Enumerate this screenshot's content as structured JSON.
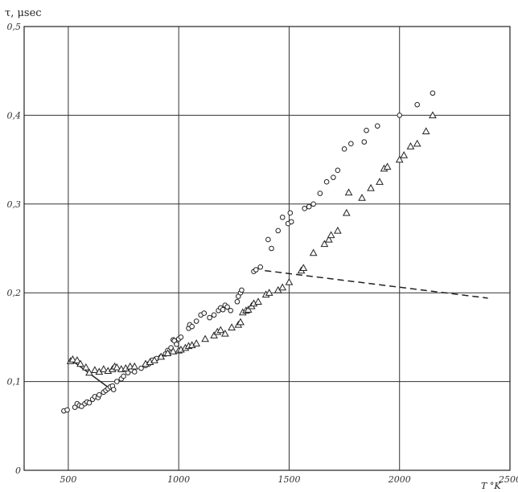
{
  "chart_data": {
    "type": "scatter",
    "title": "",
    "ylabel": "τ, μsec",
    "xlabel": "T °K",
    "xlim": [
      300,
      2500
    ],
    "ylim": [
      0,
      0.5
    ],
    "x_ticks": [
      "500",
      "1000",
      "1500",
      "2000",
      "2500"
    ],
    "x_tick_values": [
      500,
      1000,
      1500,
      2000,
      2500
    ],
    "y_ticks": [
      "0",
      "0,1",
      "0,2",
      "0,3",
      "0,4",
      "0,5"
    ],
    "y_tick_values": [
      0,
      0.1,
      0.2,
      0.3,
      0.4,
      0.5
    ],
    "grid": true,
    "series": [
      {
        "marker": "circle",
        "points": [
          [
            480,
            0.067
          ],
          [
            495,
            0.068
          ],
          [
            530,
            0.071
          ],
          [
            540,
            0.075
          ],
          [
            550,
            0.073
          ],
          [
            560,
            0.072
          ],
          [
            575,
            0.075
          ],
          [
            585,
            0.077
          ],
          [
            595,
            0.076
          ],
          [
            610,
            0.08
          ],
          [
            620,
            0.083
          ],
          [
            635,
            0.082
          ],
          [
            640,
            0.085
          ],
          [
            660,
            0.088
          ],
          [
            670,
            0.09
          ],
          [
            680,
            0.092
          ],
          [
            690,
            0.094
          ],
          [
            700,
            0.095
          ],
          [
            705,
            0.091
          ],
          [
            720,
            0.1
          ],
          [
            740,
            0.103
          ],
          [
            750,
            0.106
          ],
          [
            770,
            0.11
          ],
          [
            785,
            0.113
          ],
          [
            800,
            0.111
          ],
          [
            830,
            0.115
          ],
          [
            850,
            0.118
          ],
          [
            865,
            0.12
          ],
          [
            880,
            0.124
          ],
          [
            900,
            0.126
          ],
          [
            920,
            0.128
          ],
          [
            940,
            0.131
          ],
          [
            950,
            0.135
          ],
          [
            965,
            0.138
          ],
          [
            975,
            0.147
          ],
          [
            980,
            0.146
          ],
          [
            990,
            0.142
          ],
          [
            1000,
            0.148
          ],
          [
            1010,
            0.15
          ],
          [
            1045,
            0.16
          ],
          [
            1050,
            0.164
          ],
          [
            1060,
            0.162
          ],
          [
            1080,
            0.168
          ],
          [
            1100,
            0.175
          ],
          [
            1115,
            0.177
          ],
          [
            1140,
            0.172
          ],
          [
            1160,
            0.175
          ],
          [
            1180,
            0.18
          ],
          [
            1190,
            0.183
          ],
          [
            1200,
            0.181
          ],
          [
            1210,
            0.186
          ],
          [
            1220,
            0.184
          ],
          [
            1235,
            0.18
          ],
          [
            1265,
            0.19
          ],
          [
            1270,
            0.196
          ],
          [
            1280,
            0.2
          ],
          [
            1285,
            0.203
          ],
          [
            1340,
            0.224
          ],
          [
            1350,
            0.226
          ],
          [
            1370,
            0.229
          ],
          [
            1405,
            0.26
          ],
          [
            1420,
            0.25
          ],
          [
            1450,
            0.27
          ],
          [
            1470,
            0.285
          ],
          [
            1495,
            0.278
          ],
          [
            1505,
            0.29
          ],
          [
            1510,
            0.28
          ],
          [
            1570,
            0.295
          ],
          [
            1590,
            0.297
          ],
          [
            1610,
            0.3
          ],
          [
            1640,
            0.312
          ],
          [
            1670,
            0.325
          ],
          [
            1700,
            0.33
          ],
          [
            1720,
            0.338
          ],
          [
            1750,
            0.362
          ],
          [
            1780,
            0.368
          ],
          [
            1840,
            0.37
          ],
          [
            1850,
            0.383
          ],
          [
            1900,
            0.388
          ],
          [
            2000,
            0.4
          ],
          [
            2080,
            0.412
          ],
          [
            2150,
            0.425
          ]
        ]
      },
      {
        "marker": "triangle",
        "points": [
          [
            510,
            0.123
          ],
          [
            520,
            0.125
          ],
          [
            540,
            0.124
          ],
          [
            555,
            0.12
          ],
          [
            580,
            0.116
          ],
          [
            595,
            0.11
          ],
          [
            620,
            0.113
          ],
          [
            640,
            0.111
          ],
          [
            660,
            0.114
          ],
          [
            680,
            0.112
          ],
          [
            700,
            0.114
          ],
          [
            710,
            0.117
          ],
          [
            720,
            0.116
          ],
          [
            740,
            0.114
          ],
          [
            760,
            0.115
          ],
          [
            780,
            0.117
          ],
          [
            800,
            0.117
          ],
          [
            850,
            0.12
          ],
          [
            870,
            0.122
          ],
          [
            890,
            0.124
          ],
          [
            920,
            0.128
          ],
          [
            950,
            0.132
          ],
          [
            975,
            0.134
          ],
          [
            1000,
            0.135
          ],
          [
            1010,
            0.136
          ],
          [
            1030,
            0.138
          ],
          [
            1045,
            0.14
          ],
          [
            1060,
            0.141
          ],
          [
            1080,
            0.143
          ],
          [
            1120,
            0.148
          ],
          [
            1160,
            0.152
          ],
          [
            1175,
            0.156
          ],
          [
            1190,
            0.158
          ],
          [
            1210,
            0.154
          ],
          [
            1240,
            0.161
          ],
          [
            1270,
            0.164
          ],
          [
            1280,
            0.167
          ],
          [
            1290,
            0.178
          ],
          [
            1305,
            0.18
          ],
          [
            1315,
            0.181
          ],
          [
            1330,
            0.185
          ],
          [
            1340,
            0.188
          ],
          [
            1360,
            0.19
          ],
          [
            1395,
            0.198
          ],
          [
            1410,
            0.2
          ],
          [
            1450,
            0.203
          ],
          [
            1470,
            0.206
          ],
          [
            1500,
            0.212
          ],
          [
            1555,
            0.225
          ],
          [
            1565,
            0.228
          ],
          [
            1610,
            0.245
          ],
          [
            1660,
            0.255
          ],
          [
            1680,
            0.26
          ],
          [
            1690,
            0.265
          ],
          [
            1720,
            0.27
          ],
          [
            1760,
            0.29
          ],
          [
            1770,
            0.313
          ],
          [
            1830,
            0.307
          ],
          [
            1870,
            0.318
          ],
          [
            1910,
            0.325
          ],
          [
            1930,
            0.34
          ],
          [
            1945,
            0.342
          ],
          [
            2000,
            0.35
          ],
          [
            2020,
            0.355
          ],
          [
            2050,
            0.365
          ],
          [
            2080,
            0.368
          ],
          [
            2120,
            0.382
          ],
          [
            2150,
            0.4
          ]
        ]
      }
    ],
    "lines": [
      {
        "style": "solid",
        "points": [
          [
            520,
            0.123
          ],
          [
            700,
            0.09
          ]
        ]
      },
      {
        "style": "dashed",
        "points": [
          [
            1390,
            0.225
          ],
          [
            2400,
            0.194
          ]
        ]
      }
    ]
  }
}
